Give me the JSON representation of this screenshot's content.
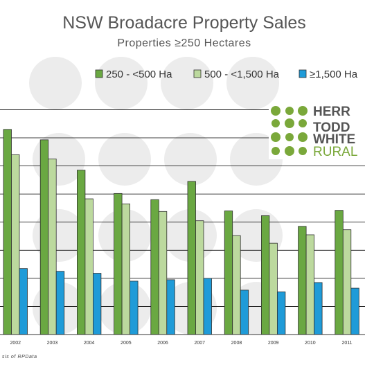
{
  "chart_data": {
    "type": "bar",
    "title": "NSW Broadacre Property Sales",
    "subtitle": "Properties ≥250 Hectares",
    "categories": [
      "2002",
      "2003",
      "2004",
      "2005",
      "2006",
      "2007",
      "2008",
      "2009",
      "2010",
      "2011"
    ],
    "series": [
      {
        "name": "250 - <500 Ha",
        "color": "#6aa842",
        "values": [
          730,
          693,
          585,
          502,
          480,
          545,
          440,
          423,
          385,
          442
        ]
      },
      {
        "name": "500 - <1,500 Ha",
        "color": "#bcd99e",
        "values": [
          640,
          625,
          483,
          465,
          438,
          405,
          352,
          325,
          355,
          373
        ]
      },
      {
        "name": "≥1,500 Ha",
        "color": "#1f9bd8",
        "values": [
          235,
          225,
          218,
          190,
          195,
          200,
          158,
          152,
          185,
          165
        ]
      }
    ],
    "ylim": [
      0,
      880
    ],
    "gridline_step": 100,
    "grid": true,
    "legend_position": "top-right",
    "source_note": "sis of RPData"
  },
  "logo": {
    "lines": [
      "HERR",
      "TODD",
      "WHITE",
      "RURAL"
    ],
    "primary_color": "#555555",
    "accent_color": "#7aa83a"
  }
}
